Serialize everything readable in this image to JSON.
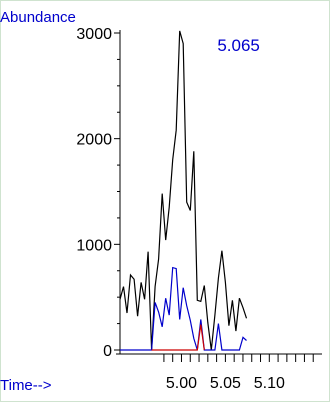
{
  "chart_data": {
    "type": "line",
    "ylabel": "Abundance",
    "xlabel": "Time-->",
    "ylim": [
      0,
      3000
    ],
    "y_ticks": [
      0,
      1000,
      2000,
      3000
    ],
    "x_ticks": [
      5.0,
      5.05,
      5.1
    ],
    "x_tick_labels": [
      "5.00",
      "5.05",
      "5.10"
    ],
    "xlim": [
      4.93,
      5.16
    ],
    "grid": false,
    "peak_label": "5.065",
    "peak_label_x": 5.065,
    "series": [
      {
        "color": "#000000",
        "points": [
          [
            4.93,
            480
          ],
          [
            4.934,
            600
          ],
          [
            4.938,
            350
          ],
          [
            4.942,
            710
          ],
          [
            4.946,
            670
          ],
          [
            4.95,
            320
          ],
          [
            4.954,
            640
          ],
          [
            4.958,
            480
          ],
          [
            4.962,
            930
          ],
          [
            4.966,
            0
          ],
          [
            4.97,
            600
          ],
          [
            4.974,
            860
          ],
          [
            4.978,
            1480
          ],
          [
            4.982,
            1040
          ],
          [
            4.986,
            1350
          ],
          [
            4.99,
            1800
          ],
          [
            4.994,
            2080
          ],
          [
            4.998,
            3020
          ],
          [
            5.002,
            2900
          ],
          [
            5.006,
            1400
          ],
          [
            5.01,
            1320
          ],
          [
            5.014,
            1880
          ],
          [
            5.018,
            470
          ],
          [
            5.022,
            460
          ],
          [
            5.026,
            610
          ],
          [
            5.03,
            260
          ],
          [
            5.034,
            0
          ],
          [
            5.038,
            330
          ],
          [
            5.042,
            680
          ],
          [
            5.046,
            940
          ],
          [
            5.05,
            640
          ],
          [
            5.054,
            230
          ],
          [
            5.058,
            470
          ],
          [
            5.062,
            180
          ],
          [
            5.066,
            490
          ],
          [
            5.07,
            400
          ],
          [
            5.074,
            300
          ]
        ]
      },
      {
        "color": "#0000cc",
        "points": [
          [
            4.93,
            0
          ],
          [
            4.966,
            0
          ],
          [
            4.97,
            450
          ],
          [
            4.974,
            360
          ],
          [
            4.978,
            220
          ],
          [
            4.982,
            490
          ],
          [
            4.986,
            330
          ],
          [
            4.99,
            780
          ],
          [
            4.994,
            770
          ],
          [
            4.998,
            290
          ],
          [
            5.002,
            590
          ],
          [
            5.006,
            420
          ],
          [
            5.01,
            280
          ],
          [
            5.014,
            110
          ],
          [
            5.018,
            0
          ],
          [
            5.022,
            290
          ],
          [
            5.026,
            0
          ],
          [
            5.03,
            0
          ],
          [
            5.034,
            0
          ],
          [
            5.038,
            0
          ],
          [
            5.042,
            250
          ],
          [
            5.046,
            0
          ],
          [
            5.05,
            0
          ],
          [
            5.054,
            0
          ],
          [
            5.058,
            0
          ],
          [
            5.062,
            0
          ],
          [
            5.066,
            0
          ],
          [
            5.07,
            120
          ],
          [
            5.074,
            90
          ]
        ]
      },
      {
        "color": "#cc0000",
        "points": [
          [
            4.966,
            0
          ],
          [
            5.018,
            0
          ],
          [
            5.022,
            240
          ],
          [
            5.026,
            0
          ]
        ]
      }
    ]
  }
}
